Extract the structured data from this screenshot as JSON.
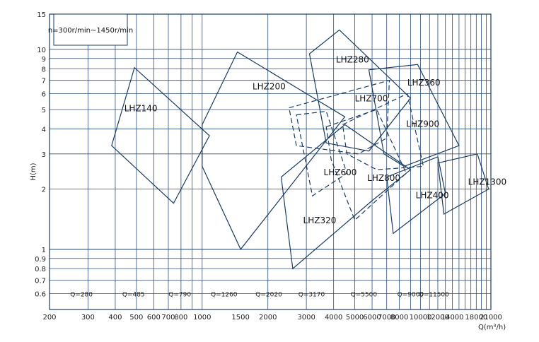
{
  "chart_data": {
    "type": "pump-selection-chart",
    "speed_note": "n=300r/min~1450r/min",
    "ylabel": "H(m)",
    "xlabel": "Q(m³/h)",
    "x_scale": "log",
    "y_scale": "log",
    "xlim": [
      200,
      21000
    ],
    "ylim": [
      0.5,
      15
    ],
    "grid": true,
    "x_ticks": [
      {
        "v": 200,
        "t": "200"
      },
      {
        "v": 300,
        "t": "300"
      },
      {
        "v": 400,
        "t": "400"
      },
      {
        "v": 500,
        "t": "500"
      },
      {
        "v": 600,
        "t": "600"
      },
      {
        "v": 700,
        "t": "700"
      },
      {
        "v": 800,
        "t": "800"
      },
      {
        "v": 1000,
        "t": "1000"
      },
      {
        "v": 1500,
        "t": "1500"
      },
      {
        "v": 2000,
        "t": "2000"
      },
      {
        "v": 3000,
        "t": "3000"
      },
      {
        "v": 4000,
        "t": "4000"
      },
      {
        "v": 5000,
        "t": "5000"
      },
      {
        "v": 6000,
        "t": "6000"
      },
      {
        "v": 7000,
        "t": "7000"
      },
      {
        "v": 8000,
        "t": "8000"
      },
      {
        "v": 10000,
        "t": "10000"
      },
      {
        "v": 12000,
        "t": "12000"
      },
      {
        "v": 14000,
        "t": "14000"
      },
      {
        "v": 18000,
        "t": "18000"
      },
      {
        "v": 21000,
        "t": "21000"
      }
    ],
    "y_ticks": [
      {
        "v": 0.6,
        "t": "0.6"
      },
      {
        "v": 0.7,
        "t": "0.7"
      },
      {
        "v": 0.8,
        "t": "0.8"
      },
      {
        "v": 0.9,
        "t": "0.9"
      },
      {
        "v": 1,
        "t": "1"
      },
      {
        "v": 2,
        "t": "2"
      },
      {
        "v": 3,
        "t": "3"
      },
      {
        "v": 4,
        "t": "4"
      },
      {
        "v": 5,
        "t": "5"
      },
      {
        "v": 6,
        "t": "6"
      },
      {
        "v": 7,
        "t": "7"
      },
      {
        "v": 8,
        "t": "8"
      },
      {
        "v": 9,
        "t": "9"
      },
      {
        "v": 10,
        "t": "10"
      },
      {
        "v": 15,
        "t": "15"
      }
    ],
    "q_markers": [
      {
        "label": "Q=280",
        "q": 280
      },
      {
        "label": "Q=485",
        "q": 485
      },
      {
        "label": "Q=790",
        "q": 790
      },
      {
        "label": "Q=1260",
        "q": 1260
      },
      {
        "label": "Q=2020",
        "q": 2020
      },
      {
        "label": "Q=3170",
        "q": 3170
      },
      {
        "label": "Q=5500",
        "q": 5500
      },
      {
        "label": "Q=9000",
        "q": 9000
      },
      {
        "label": "Q=11500",
        "q": 11500
      }
    ],
    "marker_label_h": 0.6,
    "regions": [
      {
        "name": "LHZ140",
        "style": "solid",
        "label": [
          440,
          4.9
        ],
        "outline": [
          [
            385,
            3.3
          ],
          [
            490,
            8.1
          ],
          [
            1080,
            3.7
          ],
          [
            740,
            1.7
          ]
        ]
      },
      {
        "name": "LHZ200",
        "style": "solid",
        "label": [
          1700,
          6.3
        ],
        "outline": [
          [
            1000,
            4.2
          ],
          [
            1450,
            9.7
          ],
          [
            4500,
            4.6
          ],
          [
            1500,
            1.0
          ],
          [
            1000,
            2.6
          ]
        ]
      },
      {
        "name": "LHZ280",
        "style": "solid",
        "label": [
          4100,
          8.6
        ],
        "outline": [
          [
            3100,
            9.5
          ],
          [
            4250,
            12.5
          ],
          [
            9000,
            5.7
          ],
          [
            5800,
            3.1
          ],
          [
            3700,
            3.4
          ]
        ]
      },
      {
        "name": "LHZ700",
        "style": "dashed",
        "label": [
          5000,
          5.5
        ],
        "outline": [
          [
            2500,
            5.1
          ],
          [
            7200,
            7.0
          ],
          [
            7000,
            3.6
          ],
          [
            5200,
            3.0
          ],
          [
            2700,
            3.3
          ]
        ]
      },
      {
        "name": "LHZ360",
        "style": "solid",
        "label": [
          8700,
          6.6
        ],
        "outline": [
          [
            5800,
            7.9
          ],
          [
            9700,
            8.4
          ],
          [
            15000,
            3.3
          ],
          [
            8400,
            2.6
          ],
          [
            6800,
            3.0
          ]
        ]
      },
      {
        "name": "LHZ900",
        "style": "dashed",
        "label": [
          8600,
          4.1
        ],
        "outline": [
          [
            4400,
            4.2
          ],
          [
            8700,
            6.0
          ],
          [
            10300,
            2.6
          ],
          [
            6300,
            2.5
          ],
          [
            4600,
            3.0
          ]
        ]
      },
      {
        "name": "LHZ600",
        "style": "dashed",
        "label": [
          3600,
          2.35
        ],
        "outline": [
          [
            2700,
            4.7
          ],
          [
            3700,
            4.9
          ],
          [
            4600,
            2.4
          ],
          [
            3200,
            1.85
          ]
        ]
      },
      {
        "name": "LHZ800",
        "style": "dashed",
        "label": [
          5700,
          2.2
        ],
        "outline": [
          [
            3700,
            4.1
          ],
          [
            6300,
            5.0
          ],
          [
            8600,
            2.4
          ],
          [
            5000,
            1.4
          ],
          [
            3900,
            2.8
          ]
        ]
      },
      {
        "name": "LHZ320",
        "style": "solid",
        "label": [
          2900,
          1.35
        ],
        "outline": [
          [
            2600,
            0.8
          ],
          [
            2300,
            2.3
          ],
          [
            4500,
            4.2
          ],
          [
            9000,
            2.5
          ],
          [
            6000,
            1.75
          ]
        ]
      },
      {
        "name": "LHZ400",
        "style": "solid",
        "label": [
          9500,
          1.8
        ],
        "outline": [
          [
            7000,
            2.3
          ],
          [
            12000,
            2.9
          ],
          [
            13000,
            1.9
          ],
          [
            7500,
            1.2
          ]
        ]
      },
      {
        "name": "LHZ1300",
        "style": "solid",
        "label": [
          16500,
          2.1
        ],
        "outline": [
          [
            12000,
            2.7
          ],
          [
            18200,
            3.0
          ],
          [
            20500,
            2.0
          ],
          [
            12800,
            1.5
          ]
        ]
      }
    ]
  }
}
